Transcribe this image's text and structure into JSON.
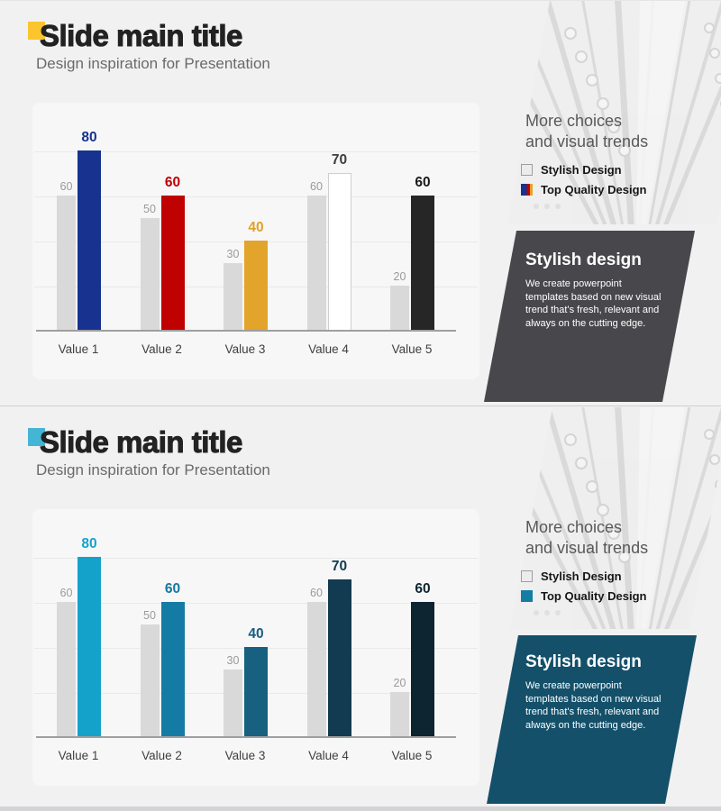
{
  "slides": [
    {
      "accent_color": "#fbc52d",
      "title": "Slide main title",
      "subtitle": "Design inspiration for Presentation",
      "panel": {
        "heading_line1": "More choices",
        "heading_line2": "and visual trends",
        "legend": [
          {
            "label": "Stylish Design",
            "swatch_colors": [
              "#ececec"
            ],
            "swatch_border": "#9e9e9e"
          },
          {
            "label": "Top Quality Design",
            "swatch_colors": [
              "#17338f",
              "#c00101",
              "#e2a42a"
            ],
            "swatch_border": ""
          }
        ]
      },
      "callout": {
        "heading": "Stylish design",
        "body": "We create powerpoint templates based on new visual trend that's fresh, relevant and always on the cutting edge.",
        "bg": "#48484c"
      },
      "chart_data": {
        "type": "bar",
        "categories": [
          "Value 1",
          "Value 2",
          "Value 3",
          "Value 4",
          "Value 5"
        ],
        "series": [
          {
            "name": "Stylish Design",
            "values": [
              60,
              50,
              30,
              60,
              20
            ],
            "color": "#d9d9d9",
            "label_color": "#9a9a9a"
          },
          {
            "name": "Top Quality Design",
            "values": [
              80,
              60,
              40,
              70,
              60
            ],
            "colors": [
              "#17338f",
              "#c00101",
              "#e2a42a",
              "#ffffff",
              "#262626"
            ],
            "label_colors": [
              "#17338f",
              "#c00101",
              "#dfa127",
              "#3d3d3d",
              "#1a1a1a"
            ],
            "bar_borders": [
              "",
              "",
              "",
              "#cfcfcf",
              ""
            ]
          }
        ],
        "ylim": [
          0,
          100
        ],
        "gridlines": [
          20,
          40,
          60,
          80
        ],
        "grid": true,
        "legend_position": "right-panel"
      }
    },
    {
      "accent_color": "#45b5d5",
      "title": "Slide main title",
      "subtitle": "Design inspiration for Presentation",
      "panel": {
        "heading_line1": "More choices",
        "heading_line2": "and visual trends",
        "legend": [
          {
            "label": "Stylish Design",
            "swatch_colors": [
              "#ececec"
            ],
            "swatch_border": "#9e9e9e"
          },
          {
            "label": "Top Quality Design",
            "swatch_colors": [
              "#137da4"
            ],
            "swatch_border": ""
          }
        ]
      },
      "callout": {
        "heading": "Stylish design",
        "body": "We create powerpoint templates based on new visual trend that's fresh, relevant and always on the cutting edge.",
        "bg": "#14506a"
      },
      "chart_data": {
        "type": "bar",
        "categories": [
          "Value 1",
          "Value 2",
          "Value 3",
          "Value 4",
          "Value 5"
        ],
        "series": [
          {
            "name": "Stylish Design",
            "values": [
              60,
              50,
              30,
              60,
              20
            ],
            "color": "#d9d9d9",
            "label_color": "#9a9a9a"
          },
          {
            "name": "Top Quality Design",
            "values": [
              80,
              60,
              40,
              70,
              60
            ],
            "colors": [
              "#14a2cb",
              "#147ca4",
              "#17607f",
              "#123a50",
              "#0d2431"
            ],
            "label_colors": [
              "#14a2cb",
              "#14789f",
              "#175d7c",
              "#113a4f",
              "#0d2431"
            ],
            "bar_borders": [
              "",
              "",
              "",
              "",
              ""
            ]
          }
        ],
        "ylim": [
          0,
          100
        ],
        "gridlines": [
          20,
          40,
          60,
          80
        ],
        "grid": true,
        "legend_position": "right-panel"
      }
    }
  ]
}
